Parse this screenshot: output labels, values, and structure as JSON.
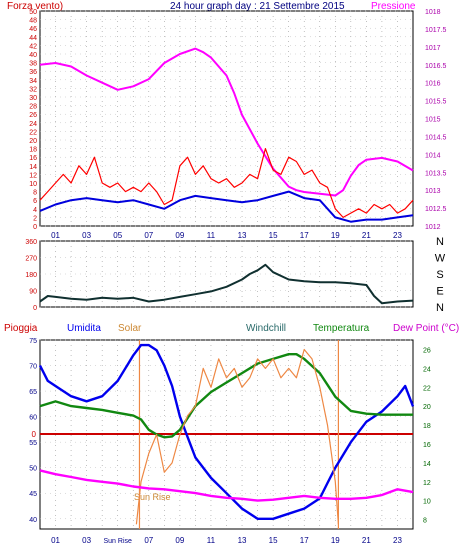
{
  "header": {
    "left_label": "Forza vento)",
    "title": "24 hour graph day : 21 Settembre 2015",
    "right_label": "Pressione"
  },
  "colors": {
    "wind": "#ff0000",
    "gust_avg": "#0000dd",
    "pressure": "#ff00ff",
    "direction": "#103030",
    "rain": "#cc0000",
    "humidity": "#0000ee",
    "solar": "#ee8844",
    "windchill": "#2a6a6a",
    "temperature": "#118811",
    "dewpoint": "#ff00ff",
    "axis_left": "#cc0000",
    "axis_right": "#aa00aa",
    "axis_blue": "#000088",
    "axis_green": "#006600",
    "background": "#ffffff"
  },
  "chart_data": [
    {
      "type": "line",
      "name": "wind",
      "time_ticks": [
        "01",
        "03",
        "05",
        "07",
        "09",
        "11",
        "13",
        "15",
        "17",
        "19",
        "21",
        "23"
      ],
      "y_ticks_left": [
        "0",
        "2",
        "4",
        "6",
        "8",
        "10",
        "12",
        "14",
        "16",
        "18",
        "20",
        "22",
        "24",
        "26",
        "28",
        "30",
        "32",
        "34",
        "36",
        "38",
        "40",
        "42",
        "44",
        "46",
        "48",
        "50"
      ],
      "y_ticks_right": [
        "1012",
        "1012.5",
        "1013",
        "1013.5",
        "1014",
        "1014.5",
        "1015",
        "1015.5",
        "1016",
        "1016.5",
        "1017",
        "1017.5",
        "1018"
      ],
      "ylim_left": [
        0,
        50
      ],
      "ylim_right": [
        1012,
        1018
      ],
      "x_range": [
        0,
        24
      ],
      "series": [
        {
          "id": "pressure",
          "axis": "right",
          "x": [
            0,
            1,
            2,
            3,
            4,
            5,
            6,
            7,
            8,
            9,
            10,
            10.5,
            11,
            12,
            12.5,
            13,
            14,
            15,
            16,
            16.5,
            17,
            18,
            19,
            19.5,
            20,
            20.5,
            21,
            22,
            23,
            24
          ],
          "y": [
            1016.5,
            1016.55,
            1016.45,
            1016.2,
            1016.0,
            1015.8,
            1015.9,
            1016.1,
            1016.55,
            1016.8,
            1016.95,
            1016.85,
            1016.7,
            1016.2,
            1015.7,
            1015.1,
            1014.3,
            1013.6,
            1013.1,
            1013.0,
            1012.95,
            1012.9,
            1012.85,
            1013.0,
            1013.4,
            1013.7,
            1013.85,
            1013.9,
            1013.8,
            1013.55
          ]
        },
        {
          "id": "gust_avg",
          "axis": "left",
          "x": [
            0,
            1,
            2,
            3,
            4,
            5,
            6,
            7,
            8,
            9,
            10,
            11,
            12,
            13,
            14,
            15,
            16,
            17,
            18,
            19,
            20,
            21,
            22,
            23,
            24
          ],
          "y": [
            3.5,
            5,
            6,
            6.5,
            6,
            5.5,
            6,
            5,
            4,
            6,
            7,
            6.5,
            6,
            5.5,
            6,
            7,
            8,
            6.5,
            6,
            2,
            1,
            1.5,
            1.5,
            2,
            2.5
          ]
        },
        {
          "id": "wind",
          "axis": "left",
          "x": [
            0,
            0.5,
            1,
            1.5,
            2,
            2.5,
            3,
            3.5,
            4,
            4.5,
            5,
            5.5,
            6,
            6.5,
            7,
            7.5,
            8,
            8.5,
            9,
            9.5,
            10,
            10.5,
            11,
            11.5,
            12,
            12.5,
            13,
            13.5,
            14,
            14.5,
            15,
            15.5,
            16,
            16.5,
            17,
            17.5,
            18,
            18.5,
            19,
            19.5,
            20,
            20.5,
            21,
            21.5,
            22,
            22.5,
            23,
            23.5,
            24
          ],
          "y": [
            6,
            8,
            10,
            12,
            10,
            14,
            12,
            16,
            10,
            9,
            10,
            8,
            9,
            8,
            10,
            8,
            5,
            6,
            14,
            16,
            12,
            14,
            11,
            10,
            11,
            9,
            10,
            12,
            11,
            18,
            13,
            12,
            16,
            15,
            12,
            13,
            10,
            9,
            4,
            2,
            3,
            4,
            3,
            5,
            4,
            5,
            3,
            4,
            6
          ]
        }
      ]
    },
    {
      "type": "line",
      "name": "wind-direction",
      "y_ticks_left": [
        "0",
        "90",
        "180",
        "270",
        "360"
      ],
      "y_ticks_right": [
        "N",
        "W",
        "S",
        "E",
        "N"
      ],
      "ylim": [
        0,
        360
      ],
      "series": [
        {
          "id": "direction",
          "x": [
            0,
            0.5,
            1,
            2,
            3,
            4,
            5,
            6,
            7,
            8,
            9,
            10,
            11,
            12,
            13,
            13.5,
            14,
            14.5,
            15,
            16,
            17,
            18,
            19,
            20,
            21,
            21.5,
            22,
            23,
            24
          ],
          "y": [
            30,
            60,
            55,
            45,
            40,
            50,
            45,
            50,
            30,
            40,
            55,
            70,
            85,
            110,
            150,
            180,
            200,
            230,
            190,
            150,
            140,
            135,
            135,
            130,
            120,
            60,
            20,
            30,
            35
          ]
        }
      ]
    },
    {
      "type": "line",
      "name": "climate",
      "legend": [
        "Pioggia",
        "Umidita",
        "Solar",
        "Windchill",
        "Temperatura",
        "Dew Point (°C)"
      ],
      "y_ticks_left": [
        "40",
        "45",
        "50",
        "55",
        "60",
        "65",
        "70",
        "75"
      ],
      "y_ticks_right": [
        "8",
        "10",
        "12",
        "14",
        "16",
        "18",
        "20",
        "22",
        "24",
        "26"
      ],
      "ylim_left": [
        38,
        75
      ],
      "ylim_right": [
        7,
        27
      ],
      "rain_zero_label": "0",
      "x_ticks": [
        "01",
        "03",
        "Sun Rise",
        "07",
        "09",
        "11",
        "13",
        "15",
        "17",
        "19",
        "21",
        "23"
      ],
      "annotations": [
        {
          "text": "Sun Rise",
          "x": 6.5
        }
      ],
      "sunrise_x": 6.4,
      "sunset_x": 19.2,
      "series": [
        {
          "id": "humidity",
          "axis": "left",
          "x": [
            0,
            0.5,
            1,
            1.5,
            2,
            3,
            4,
            5,
            6,
            6.5,
            7,
            7.5,
            8,
            8.5,
            9,
            9.5,
            10,
            11,
            12,
            13,
            14,
            15,
            16,
            17,
            18,
            18.5,
            19,
            20,
            21,
            22,
            23,
            23.5,
            24
          ],
          "y": [
            70,
            67,
            66,
            65,
            64,
            63,
            64,
            67,
            72,
            74,
            74,
            73,
            70,
            66,
            60,
            56,
            52,
            48,
            45,
            42,
            40,
            40,
            41,
            42,
            44,
            47,
            50,
            55,
            59,
            61,
            64,
            66,
            62
          ]
        },
        {
          "id": "temperature",
          "axis": "right",
          "x": [
            0,
            1,
            2,
            3,
            4,
            5,
            6,
            6.5,
            7,
            7.5,
            8,
            8.5,
            9,
            10,
            11,
            12,
            13,
            14,
            15,
            16,
            16.5,
            17,
            18,
            19,
            20,
            21,
            22,
            23,
            24
          ],
          "y": [
            20,
            20.5,
            20,
            19.8,
            19.6,
            19.3,
            19,
            18.6,
            17.5,
            17,
            16.7,
            16.8,
            17.5,
            20,
            21.5,
            22.5,
            23.5,
            24.5,
            25,
            25.5,
            25.5,
            25,
            23.5,
            21,
            19.5,
            19.2,
            19.1,
            19.1,
            19.1
          ]
        },
        {
          "id": "solar",
          "axis": "right",
          "x": [
            6.2,
            6.5,
            7,
            7.5,
            8,
            8.5,
            9,
            9.5,
            10,
            10.5,
            11,
            11.5,
            12,
            12.5,
            13,
            13.5,
            14,
            14.5,
            15,
            15.5,
            16,
            16.5,
            17,
            17.5,
            18,
            18.5,
            19,
            19.2
          ],
          "y": [
            7.5,
            12,
            15,
            17,
            13,
            14,
            17,
            19,
            20,
            24,
            22,
            25,
            23,
            24,
            22,
            23,
            25,
            24,
            25,
            23,
            24,
            23,
            26,
            25,
            22,
            18,
            12,
            7.5
          ]
        },
        {
          "id": "dewpoint",
          "axis": "right",
          "x": [
            0,
            1,
            2,
            3,
            4,
            5,
            6,
            7,
            8,
            9,
            10,
            11,
            12,
            13,
            14,
            15,
            16,
            17,
            18,
            19,
            20,
            21,
            22,
            23,
            24
          ],
          "y": [
            13.2,
            12.8,
            12.5,
            12.2,
            12.0,
            11.8,
            11.5,
            11.3,
            11.2,
            11.0,
            10.8,
            10.5,
            10.3,
            10.2,
            10.0,
            10.1,
            10.3,
            10.5,
            10.3,
            10.2,
            10.2,
            10.3,
            10.6,
            11.2,
            10.9
          ]
        }
      ]
    }
  ]
}
